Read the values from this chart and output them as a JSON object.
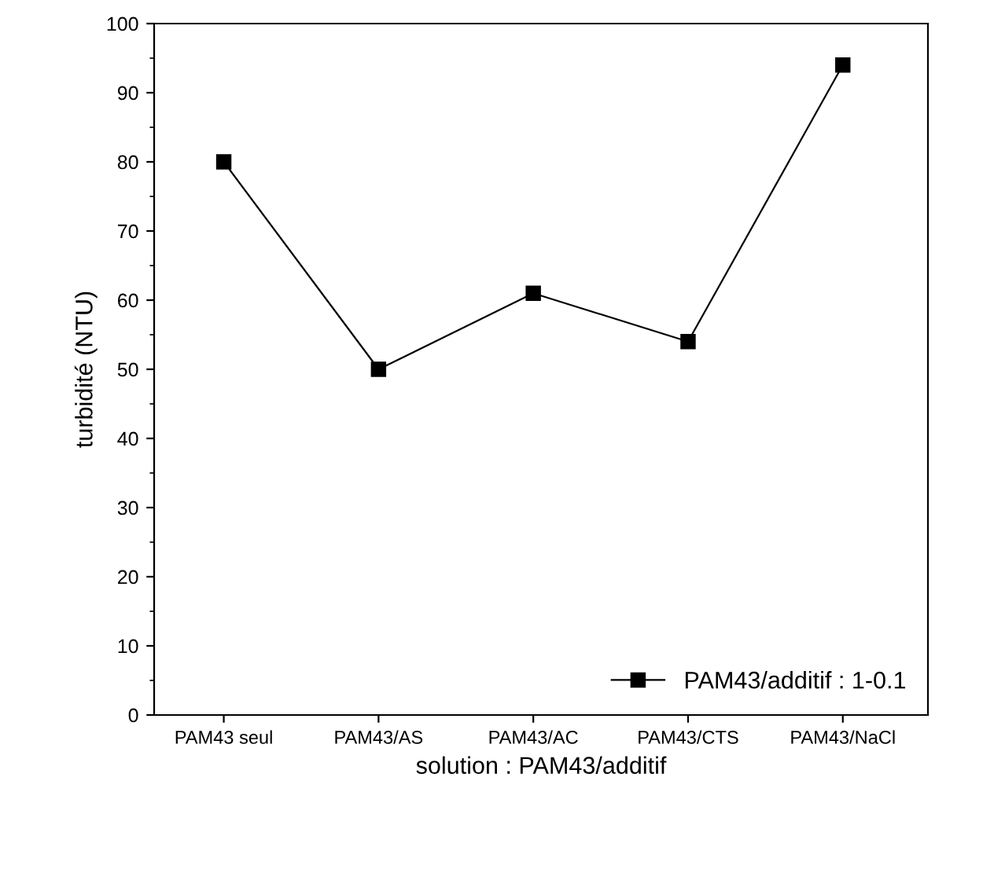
{
  "chart_data": {
    "type": "line",
    "xlabel": "solution : PAM43/additif",
    "ylabel": "turbidité (NTU)",
    "categories": [
      "PAM43 seul",
      "PAM43/AS",
      "PAM43/AC",
      "PAM43/CTS",
      "PAM43/NaCl"
    ],
    "series": [
      {
        "name": "PAM43/additif : 1-0.1",
        "color": "#000000",
        "values": [
          80,
          50,
          61,
          54,
          94
        ]
      }
    ],
    "ylim": [
      0,
      100
    ],
    "yticks": [
      0,
      10,
      20,
      30,
      40,
      50,
      60,
      70,
      80,
      90,
      100
    ],
    "marker": "square",
    "line_style": "solid",
    "grid": false,
    "legend": "bottom right"
  }
}
